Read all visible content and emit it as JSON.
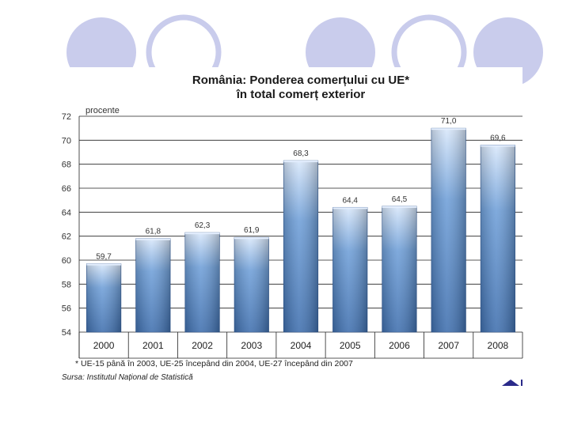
{
  "chart_data": {
    "type": "bar",
    "title": [
      "România: Ponderea comerțului cu UE*",
      "în total comerț exterior"
    ],
    "ylabel": "procente",
    "xlabel": "",
    "categories": [
      "2000",
      "2001",
      "2002",
      "2003",
      "2004",
      "2005",
      "2006",
      "2007",
      "2008"
    ],
    "values": [
      59.7,
      61.8,
      62.3,
      61.9,
      68.3,
      64.4,
      64.5,
      71.0,
      69.6
    ],
    "value_labels": [
      "59,7",
      "61,8",
      "62,3",
      "61,9",
      "68,3",
      "64,4",
      "64,5",
      "71,0",
      "69,6"
    ],
    "ylim": [
      54,
      72
    ],
    "yticks": [
      54,
      56,
      58,
      60,
      62,
      64,
      66,
      68,
      70,
      72
    ],
    "grid": true,
    "legend": "none",
    "bar_color": "#6f9fd8",
    "footnote": "* UE-15 până în 2003, UE-25 începând din 2004, UE-27 începând din 2007",
    "source": "Sursa: Institutul Național de Statistică"
  },
  "decor": {
    "circle_color": "#c9ccec",
    "nav_icon": "navigation-arrow-icon"
  }
}
